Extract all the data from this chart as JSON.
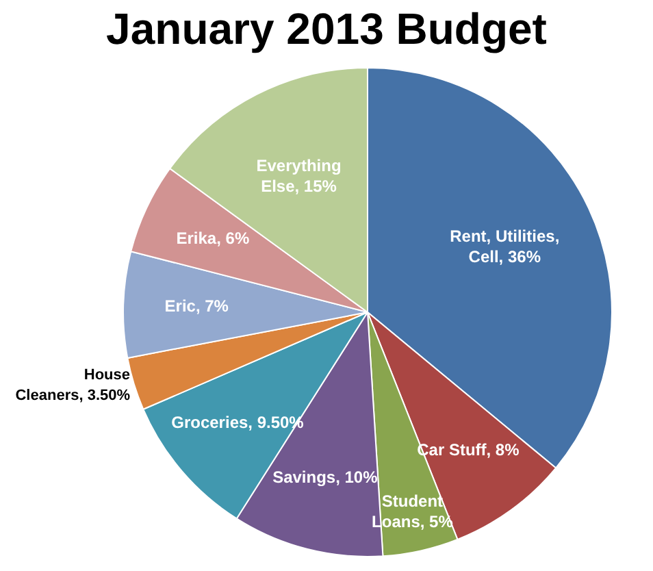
{
  "chart_data": {
    "type": "pie",
    "title": "January 2013 Budget",
    "categories": [
      "Rent, Utilities, Cell",
      "Car Stuff",
      "Student Loans",
      "Savings",
      "Groceries",
      "House Cleaners",
      "Eric",
      "Erika",
      "Everything Else"
    ],
    "values": [
      36,
      8,
      5,
      10,
      9.5,
      3.5,
      7,
      6,
      15
    ],
    "value_labels": [
      "36%",
      "8%",
      "5%",
      "10%",
      "9.50%",
      "3.50%",
      "7%",
      "6%",
      "15%"
    ],
    "colors": [
      "#4572a7",
      "#aa4643",
      "#89a54e",
      "#71588f",
      "#4198af",
      "#db843d",
      "#93a9cf",
      "#d19392",
      "#b9cd96"
    ],
    "legend": false
  }
}
